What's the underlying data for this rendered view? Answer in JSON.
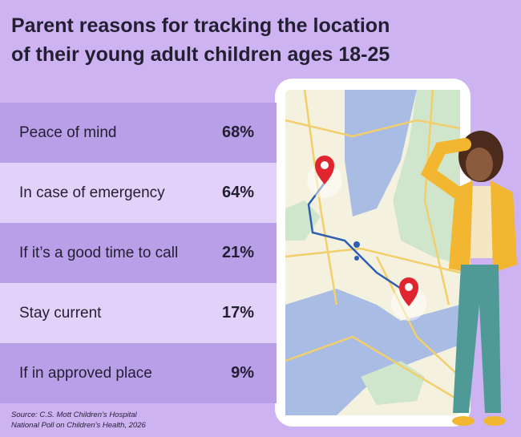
{
  "header": {
    "title_line1": "Parent reasons for tracking the location",
    "title_line2": "of their young adult children ages 18-25"
  },
  "table": {
    "rows": [
      [
        "Peace of mind",
        "68%"
      ],
      [
        "In case of emergency",
        "64%"
      ],
      [
        "If it’s a good time to call",
        "21%"
      ],
      [
        "Stay current",
        "17%"
      ],
      [
        "If in approved place",
        "9%"
      ]
    ]
  },
  "source": {
    "line1": "Source: C.S. Mott Children’s Hospital",
    "line2": "National Poll on Children’s Health, 2026"
  }
}
